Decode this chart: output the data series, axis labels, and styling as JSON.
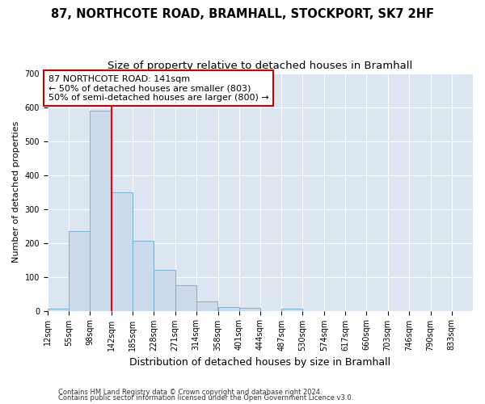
{
  "title": "87, NORTHCOTE ROAD, BRAMHALL, STOCKPORT, SK7 2HF",
  "subtitle": "Size of property relative to detached houses in Bramhall",
  "xlabel": "Distribution of detached houses by size in Bramhall",
  "ylabel": "Number of detached properties",
  "footnote1": "Contains HM Land Registry data © Crown copyright and database right 2024.",
  "footnote2": "Contains public sector information licensed under the Open Government Licence v3.0.",
  "bin_edges": [
    12,
    55,
    98,
    142,
    185,
    228,
    271,
    314,
    358,
    401,
    444,
    487,
    530,
    574,
    617,
    660,
    703,
    746,
    790,
    833,
    876
  ],
  "bar_heights": [
    5,
    235,
    590,
    350,
    205,
    120,
    75,
    27,
    12,
    8,
    0,
    7,
    0,
    0,
    0,
    0,
    0,
    0,
    0,
    0
  ],
  "bar_color": "#ccdaeb",
  "bar_edgecolor": "#7bafd4",
  "redline_x": 142,
  "annotation_text": "87 NORTHCOTE ROAD: 141sqm\n← 50% of detached houses are smaller (803)\n50% of semi-detached houses are larger (800) →",
  "annotation_box_color": "#ffffff",
  "annotation_box_edgecolor": "#cc0000",
  "ylim": [
    0,
    700
  ],
  "xlim": [
    12,
    876
  ],
  "background_color": "#dce6f1",
  "grid_color": "#ffffff",
  "title_fontsize": 10.5,
  "subtitle_fontsize": 9.5,
  "xlabel_fontsize": 9,
  "ylabel_fontsize": 8,
  "tick_fontsize": 7,
  "annotation_fontsize": 8,
  "yticks": [
    0,
    100,
    200,
    300,
    400,
    500,
    600,
    700
  ]
}
